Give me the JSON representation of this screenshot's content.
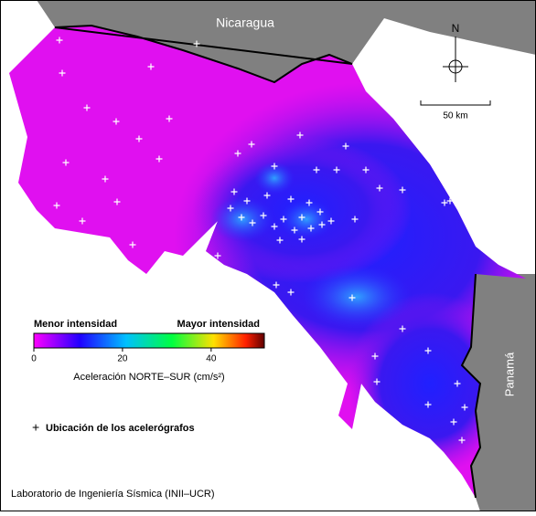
{
  "map": {
    "labels": {
      "north_country": "Nicaragua",
      "south_country": "Panamá",
      "north": "N",
      "scale": "50 km"
    },
    "colorbar": {
      "min_label": "Menor intensidad",
      "max_label": "Mayor intensidad",
      "range": [
        0,
        52
      ],
      "ticks": [
        0,
        20,
        40
      ],
      "title": "Aceleración NORTE–SUR (cm/s²)"
    },
    "legend": {
      "stations": "Ubicación de los acelerógrafos"
    },
    "credit": "Laboratorio de Ingeniería Sísmica (INII–UCR)"
  }
}
